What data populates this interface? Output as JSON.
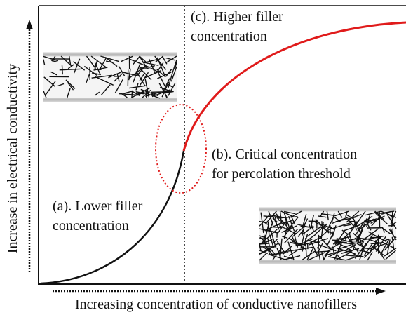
{
  "axes": {
    "y_label": "Increase in electrical conductivity",
    "x_label": "Increasing concentration of conductive nanofillers"
  },
  "annotations": [
    {
      "lines": [
        "(c). Higher filler",
        "concentration"
      ]
    },
    {
      "lines": [
        "(b). Critical concentration",
        "for percolation threshold"
      ]
    },
    {
      "lines": [
        "(a). Lower filler",
        "concentration"
      ]
    }
  ]
}
